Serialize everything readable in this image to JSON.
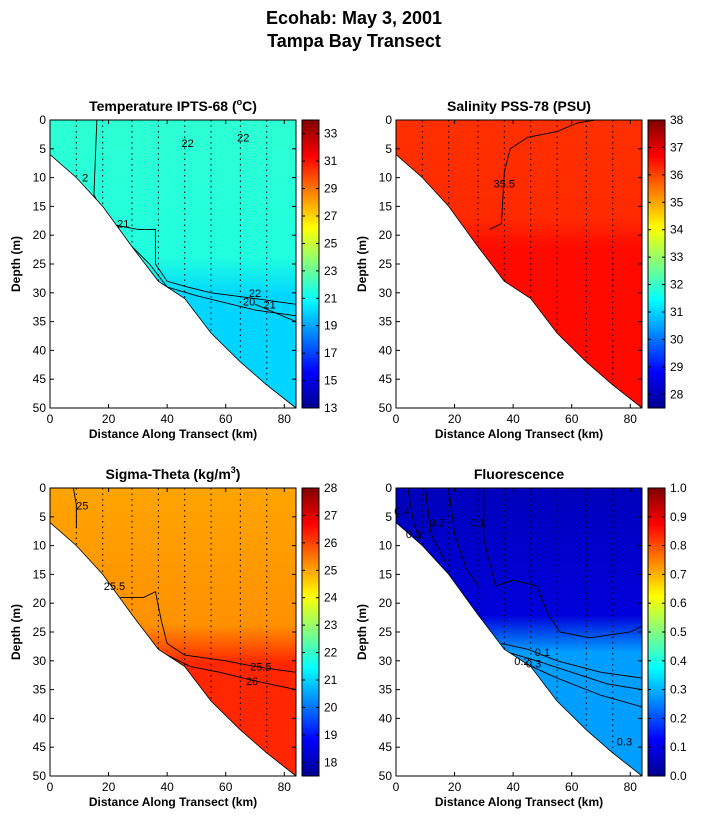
{
  "figure": {
    "title_line1": "Ecohab:  May 3, 2001",
    "title_line2": "Tampa Bay Transect"
  },
  "colormap": [
    "#00008f",
    "#0000ff",
    "#0080ff",
    "#00ffff",
    "#80ff80",
    "#ffff00",
    "#ff8000",
    "#ff0000",
    "#800000"
  ],
  "chart_data": [
    {
      "type": "heatmap",
      "title": "Temperature IPTS-68 (",
      "title_sup": "o",
      "title_tail": "C)",
      "xlabel": "Distance Along Transect (km)",
      "ylabel": "Depth (m)",
      "xlim": [
        0,
        84
      ],
      "ylim": [
        50,
        0
      ],
      "x_ticks": [
        0,
        20,
        40,
        60,
        80
      ],
      "y_ticks": [
        0,
        5,
        10,
        15,
        20,
        25,
        30,
        35,
        40,
        45,
        50
      ],
      "colorbar": {
        "range": [
          13,
          34
        ],
        "ticks": [
          13,
          15,
          17,
          19,
          21,
          23,
          25,
          27,
          29,
          31,
          33
        ]
      },
      "stations_km": [
        9,
        18,
        28,
        37,
        46,
        55,
        65,
        74
      ],
      "bottom_depth": [
        [
          0,
          6
        ],
        [
          9,
          10
        ],
        [
          18,
          15
        ],
        [
          28,
          22
        ],
        [
          37,
          28
        ],
        [
          46,
          31
        ],
        [
          55,
          37
        ],
        [
          65,
          42
        ],
        [
          74,
          46
        ],
        [
          84,
          50
        ]
      ],
      "field": {
        "surface_value": 21.8,
        "bottom_value": 20.0,
        "mix_depth": 28
      },
      "contour_labels": [
        {
          "text": "22",
          "x": 47,
          "y": 4
        },
        {
          "text": "22",
          "x": 66,
          "y": 3
        },
        {
          "text": "2",
          "x": 12,
          "y": 10
        },
        {
          "text": "21",
          "x": 25,
          "y": 18
        },
        {
          "text": "22",
          "x": 70,
          "y": 30
        },
        {
          "text": "20",
          "x": 68,
          "y": 31.5
        },
        {
          "text": "21",
          "x": 75,
          "y": 32
        }
      ],
      "contours": [
        [
          [
            16,
            0
          ],
          [
            15,
            13
          ],
          [
            20,
            18
          ],
          [
            30,
            19
          ],
          [
            36,
            19
          ],
          [
            36,
            25
          ],
          [
            40,
            28
          ],
          [
            47,
            29
          ],
          [
            55,
            30
          ],
          [
            70,
            31
          ],
          [
            84,
            32
          ]
        ],
        [
          [
            24,
            20
          ],
          [
            30,
            23
          ],
          [
            34,
            25
          ],
          [
            40,
            29
          ],
          [
            50,
            30.5
          ],
          [
            70,
            33
          ],
          [
            84,
            34
          ]
        ],
        [
          [
            70,
            32
          ],
          [
            84,
            35
          ]
        ]
      ]
    },
    {
      "type": "heatmap",
      "title": "Salinity PSS-78 (PSU)",
      "xlabel": "Distance Along Transect (km)",
      "ylabel": "Depth (m)",
      "xlim": [
        0,
        84
      ],
      "ylim": [
        50,
        0
      ],
      "x_ticks": [
        0,
        20,
        40,
        60,
        80
      ],
      "y_ticks": [
        0,
        5,
        10,
        15,
        20,
        25,
        30,
        35,
        40,
        45,
        50
      ],
      "colorbar": {
        "range": [
          27.5,
          38
        ],
        "ticks": [
          28,
          29,
          30,
          31,
          32,
          33,
          34,
          35,
          36,
          37,
          38
        ]
      },
      "stations_km": [
        9,
        18,
        28,
        37,
        46,
        55,
        65,
        74
      ],
      "bottom_depth": [
        [
          0,
          6
        ],
        [
          9,
          10
        ],
        [
          18,
          15
        ],
        [
          28,
          22
        ],
        [
          37,
          28
        ],
        [
          46,
          31
        ],
        [
          55,
          37
        ],
        [
          65,
          42
        ],
        [
          74,
          46
        ],
        [
          84,
          50
        ]
      ],
      "field": {
        "surface_value": 36.2,
        "bottom_value": 36.6,
        "mix_depth": 20
      },
      "contour_labels": [
        {
          "text": "35.5",
          "x": 37,
          "y": 11
        }
      ],
      "contours": [
        [
          [
            32,
            19
          ],
          [
            36,
            18
          ],
          [
            37,
            9
          ],
          [
            39,
            5
          ],
          [
            45,
            3
          ],
          [
            55,
            2
          ],
          [
            62,
            0.5
          ],
          [
            68,
            0
          ]
        ]
      ]
    },
    {
      "type": "heatmap",
      "title": "Sigma-Theta (kg/m",
      "title_sup": "3",
      "title_tail": ")",
      "xlabel": "Distance Along Transect (km)",
      "ylabel": "Depth (m)",
      "xlim": [
        0,
        84
      ],
      "ylim": [
        50,
        0
      ],
      "x_ticks": [
        0,
        20,
        40,
        60,
        80
      ],
      "y_ticks": [
        0,
        5,
        10,
        15,
        20,
        25,
        30,
        35,
        40,
        45,
        50
      ],
      "colorbar": {
        "range": [
          17.5,
          28
        ],
        "ticks": [
          18,
          19,
          20,
          21,
          22,
          23,
          24,
          25,
          26,
          27,
          28
        ]
      },
      "stations_km": [
        9,
        18,
        28,
        37,
        46,
        55,
        65,
        74
      ],
      "bottom_depth": [
        [
          0,
          6
        ],
        [
          9,
          10
        ],
        [
          18,
          15
        ],
        [
          28,
          22
        ],
        [
          37,
          28
        ],
        [
          46,
          31
        ],
        [
          55,
          37
        ],
        [
          65,
          42
        ],
        [
          74,
          46
        ],
        [
          84,
          50
        ]
      ],
      "field": {
        "surface_value": 25.0,
        "bottom_value": 26.3,
        "mix_depth": 28
      },
      "contour_labels": [
        {
          "text": "25",
          "x": 11,
          "y": 3
        },
        {
          "text": "25.5",
          "x": 22,
          "y": 17
        },
        {
          "text": "25.5",
          "x": 72,
          "y": 31
        },
        {
          "text": "26",
          "x": 69,
          "y": 33.5
        }
      ],
      "contours": [
        [
          [
            8,
            0
          ],
          [
            9,
            3
          ],
          [
            9,
            7
          ]
        ],
        [
          [
            24,
            19
          ],
          [
            32,
            19
          ],
          [
            36,
            18
          ],
          [
            38,
            23
          ],
          [
            40,
            27
          ],
          [
            46,
            29
          ],
          [
            60,
            30
          ],
          [
            70,
            31
          ],
          [
            84,
            32
          ]
        ],
        [
          [
            40,
            29
          ],
          [
            48,
            31
          ],
          [
            58,
            32
          ],
          [
            70,
            33.5
          ],
          [
            84,
            35
          ]
        ]
      ]
    },
    {
      "type": "heatmap",
      "title": "Fluorescence",
      "xlabel": "Distance Along Transect (km)",
      "ylabel": "Depth (m)",
      "xlim": [
        0,
        84
      ],
      "ylim": [
        50,
        0
      ],
      "x_ticks": [
        0,
        20,
        40,
        60,
        80
      ],
      "y_ticks": [
        0,
        5,
        10,
        15,
        20,
        25,
        30,
        35,
        40,
        45,
        50
      ],
      "colorbar": {
        "range": [
          0,
          1
        ],
        "ticks": [
          "0.0",
          "0.1",
          "0.2",
          "0.3",
          "0.4",
          "0.5",
          "0.6",
          "0.7",
          "0.8",
          "0.9",
          "1.0"
        ]
      },
      "stations_km": [
        9,
        18,
        28,
        37,
        46,
        55,
        65,
        74
      ],
      "bottom_depth": [
        [
          0,
          6
        ],
        [
          9,
          10
        ],
        [
          18,
          15
        ],
        [
          28,
          22
        ],
        [
          37,
          28
        ],
        [
          46,
          31
        ],
        [
          55,
          37
        ],
        [
          65,
          42
        ],
        [
          74,
          46
        ],
        [
          84,
          50
        ]
      ],
      "field": {
        "surface_value": 0.05,
        "bottom_value": 0.28,
        "mix_depth": 26
      },
      "contour_labels": [
        {
          "text": "0.4",
          "x": 2,
          "y": 4
        },
        {
          "text": "0.3",
          "x": 6,
          "y": 8
        },
        {
          "text": "0.2",
          "x": 14,
          "y": 6
        },
        {
          "text": "0.1",
          "x": 28,
          "y": 6
        },
        {
          "text": "0.1",
          "x": 50,
          "y": 28.5
        },
        {
          "text": "0.2",
          "x": 43,
          "y": 30
        },
        {
          "text": "0.3",
          "x": 47,
          "y": 30.5
        },
        {
          "text": "0.3",
          "x": 78,
          "y": 44
        }
      ],
      "contours": [
        [
          [
            30,
            0
          ],
          [
            30,
            9
          ],
          [
            32,
            13
          ],
          [
            34,
            17
          ],
          [
            40,
            16
          ],
          [
            48,
            17
          ],
          [
            52,
            22
          ],
          [
            56,
            25
          ],
          [
            66,
            26
          ],
          [
            80,
            25
          ],
          [
            84,
            24
          ]
        ],
        [
          [
            36,
            27
          ],
          [
            45,
            28
          ],
          [
            55,
            30
          ],
          [
            70,
            32
          ],
          [
            84,
            33
          ]
        ],
        [
          [
            38,
            28.5
          ],
          [
            48,
            30
          ],
          [
            60,
            32
          ],
          [
            72,
            34
          ],
          [
            84,
            35
          ]
        ],
        [
          [
            42,
            30
          ],
          [
            55,
            33
          ],
          [
            70,
            36
          ],
          [
            84,
            38
          ]
        ],
        [
          [
            18,
            0
          ],
          [
            20,
            8
          ],
          [
            24,
            14
          ],
          [
            28,
            17
          ]
        ],
        [
          [
            10,
            0
          ],
          [
            12,
            8
          ],
          [
            17,
            13
          ]
        ],
        [
          [
            4,
            0
          ],
          [
            6,
            6
          ],
          [
            8,
            9
          ]
        ]
      ]
    }
  ]
}
